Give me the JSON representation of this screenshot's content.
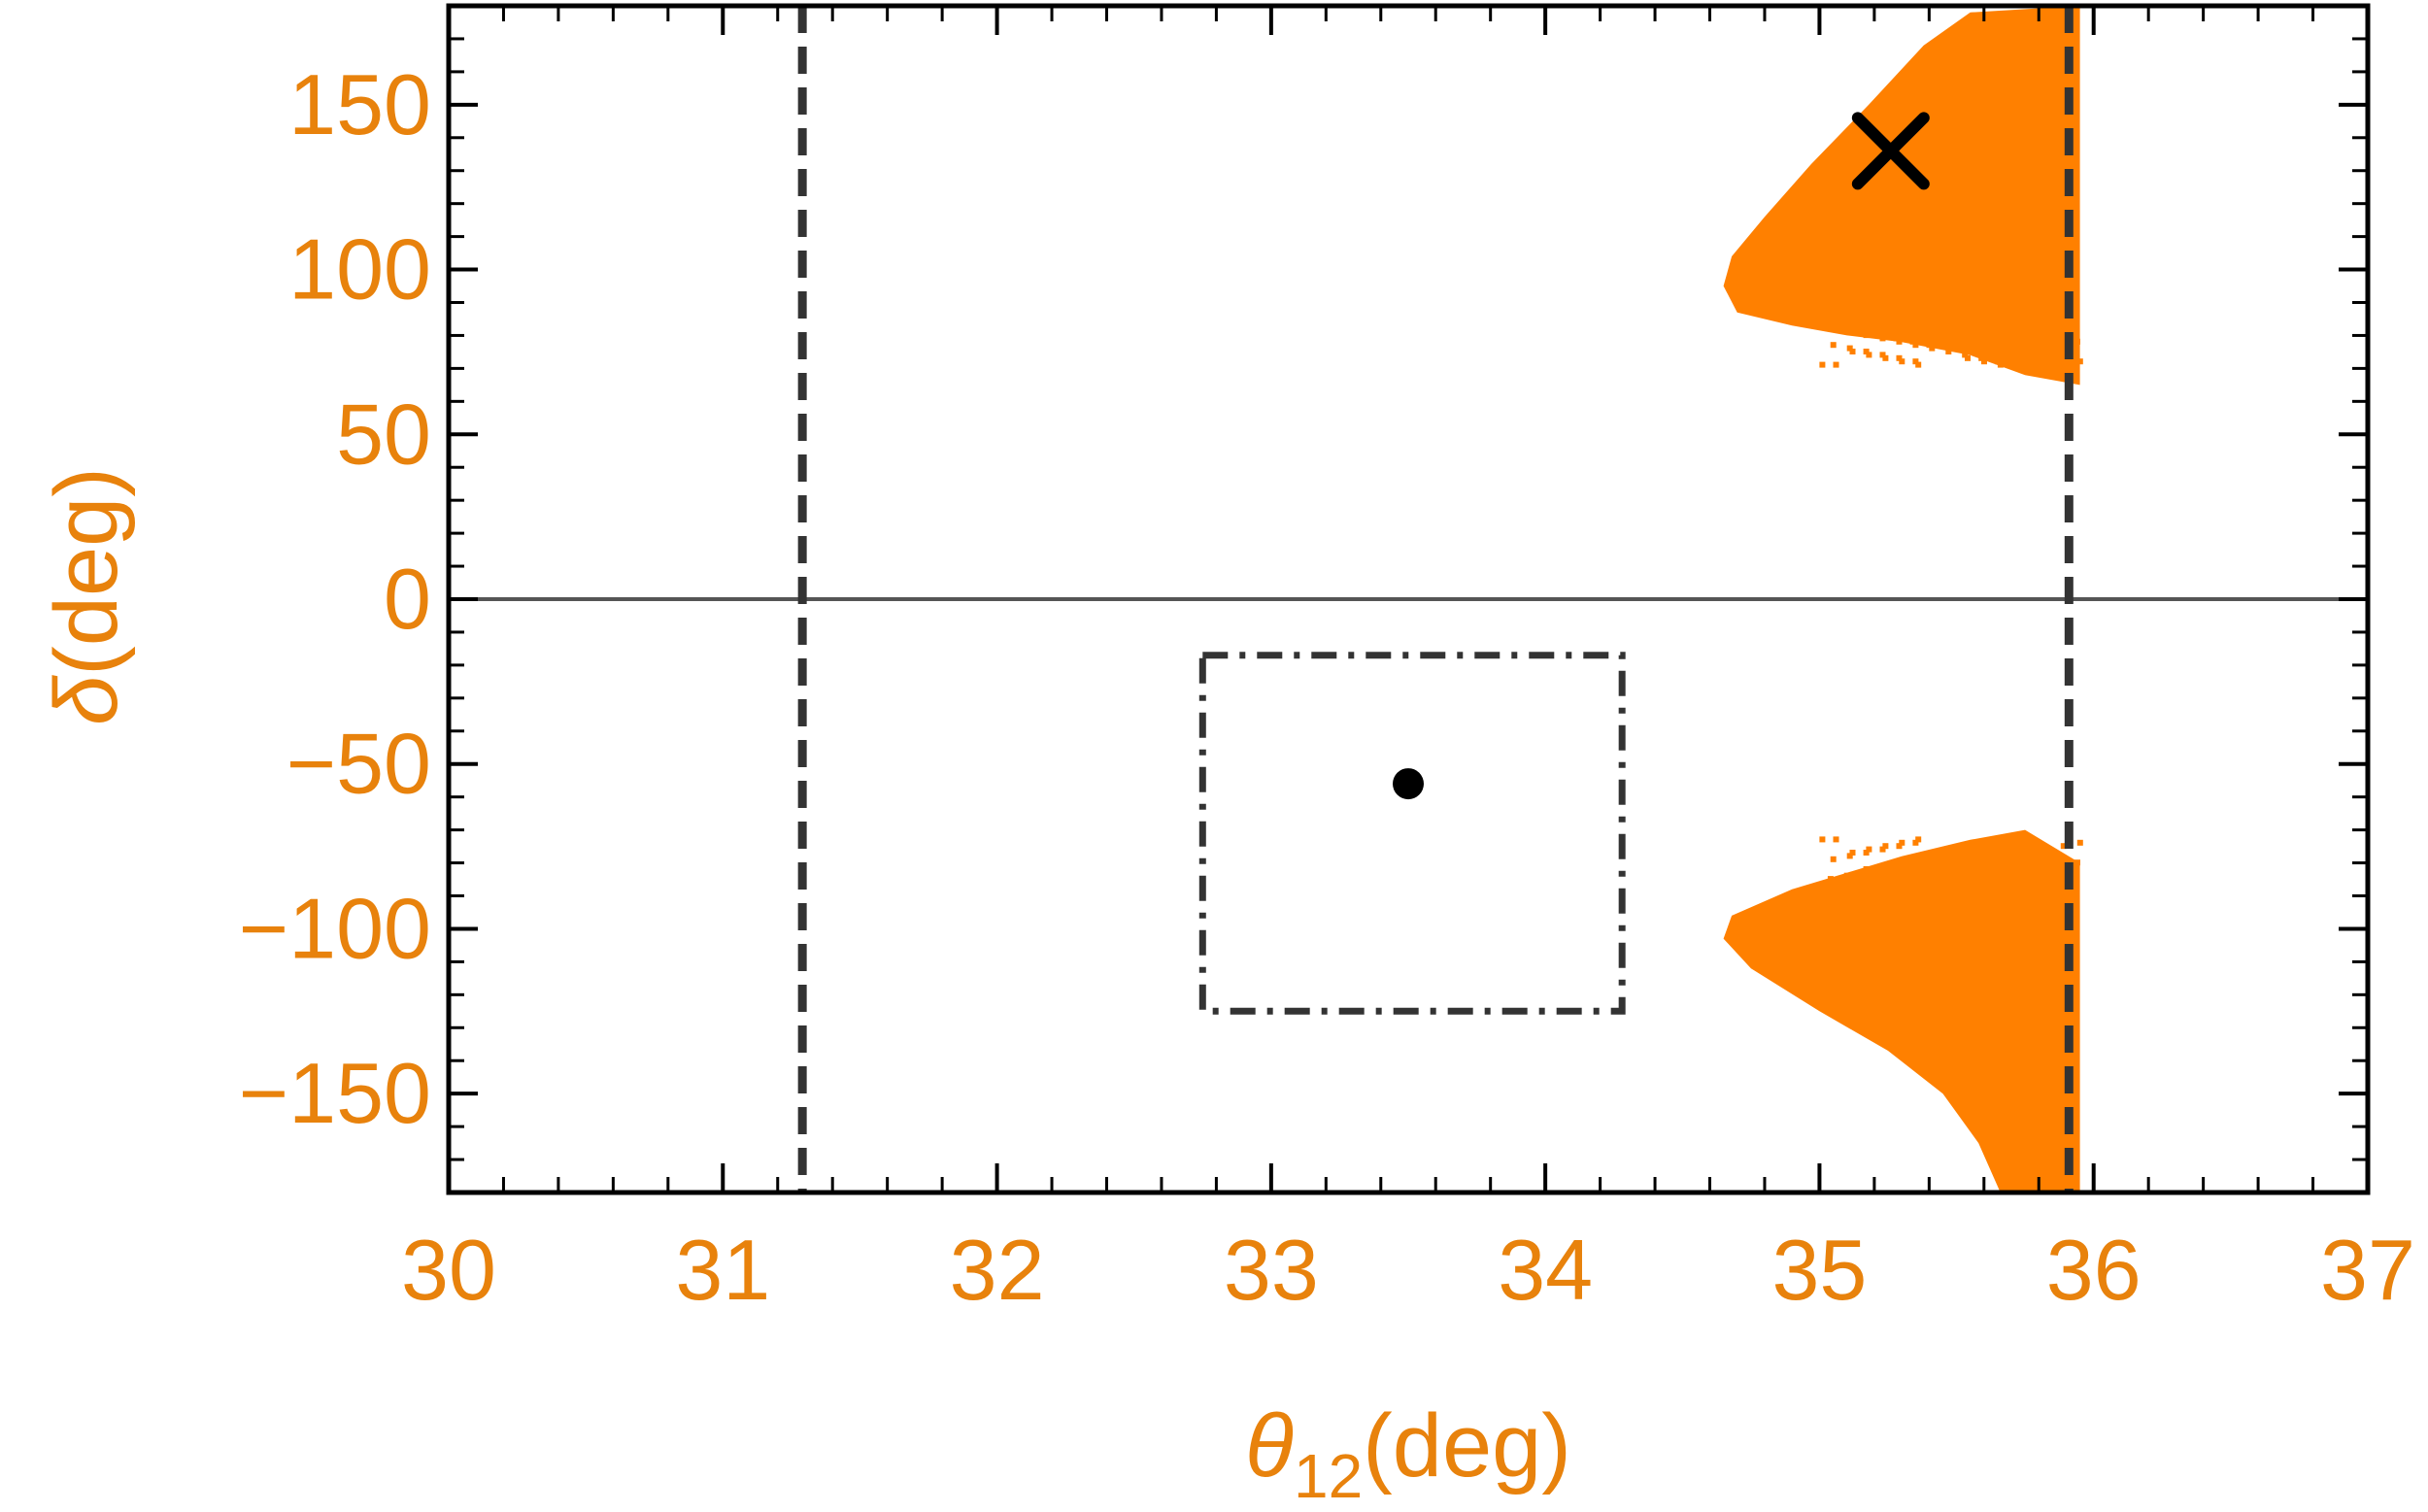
{
  "chart_data": {
    "type": "scatter",
    "title": "",
    "xlabel": {
      "symbol": "θ",
      "subscript": "12",
      "unit": "(deg)"
    },
    "ylabel": {
      "symbol": "δ",
      "unit": "(deg)"
    },
    "xlim": [
      30,
      37
    ],
    "ylim": [
      -180,
      180
    ],
    "xticks": [
      "30",
      "31",
      "32",
      "33",
      "34",
      "35",
      "36",
      "37"
    ],
    "yticks": [
      "−150",
      "−100",
      "−50",
      "0",
      "50",
      "100",
      "150"
    ],
    "ytick_values": [
      -150,
      -100,
      -50,
      0,
      50,
      100,
      150
    ],
    "xtick_values": [
      30,
      31,
      32,
      33,
      34,
      35,
      36,
      37
    ],
    "grid": false,
    "colors": {
      "region": "#ff8000",
      "tick_text": "#e8820c",
      "frame": "#000000",
      "reference": "#555555"
    },
    "series": [
      {
        "kind": "allowed-region-upper",
        "boundary": [
          [
            35.95,
            180
          ],
          [
            35.55,
            178
          ],
          [
            35.38,
            168
          ],
          [
            35.18,
            150
          ],
          [
            34.97,
            132
          ],
          [
            34.8,
            116
          ],
          [
            34.68,
            104
          ],
          [
            34.65,
            95
          ],
          [
            34.7,
            87
          ],
          [
            34.9,
            83
          ],
          [
            35.1,
            80
          ],
          [
            35.3,
            78
          ],
          [
            35.55,
            74
          ],
          [
            35.75,
            68
          ],
          [
            35.95,
            65
          ]
        ]
      },
      {
        "kind": "allowed-region-lower",
        "boundary": [
          [
            35.95,
            -80
          ],
          [
            35.75,
            -70
          ],
          [
            35.55,
            -73
          ],
          [
            35.3,
            -78
          ],
          [
            35.1,
            -83
          ],
          [
            34.9,
            -88
          ],
          [
            34.68,
            -96
          ],
          [
            34.65,
            -103
          ],
          [
            34.75,
            -112
          ],
          [
            35.0,
            -125
          ],
          [
            35.25,
            -137
          ],
          [
            35.45,
            -150
          ],
          [
            35.58,
            -165
          ],
          [
            35.66,
            -180
          ],
          [
            35.95,
            -180
          ]
        ]
      },
      {
        "kind": "reference-line",
        "y": 0
      },
      {
        "kind": "vertical-bounds",
        "x": [
          31.29,
          35.91
        ]
      },
      {
        "kind": "box-bounds",
        "x": [
          32.75,
          34.28
        ],
        "y": [
          -17,
          -125
        ]
      },
      {
        "kind": "marker-dot",
        "x": 33.5,
        "y": -56
      },
      {
        "kind": "marker-cross",
        "x": 35.26,
        "y": 136
      }
    ]
  }
}
